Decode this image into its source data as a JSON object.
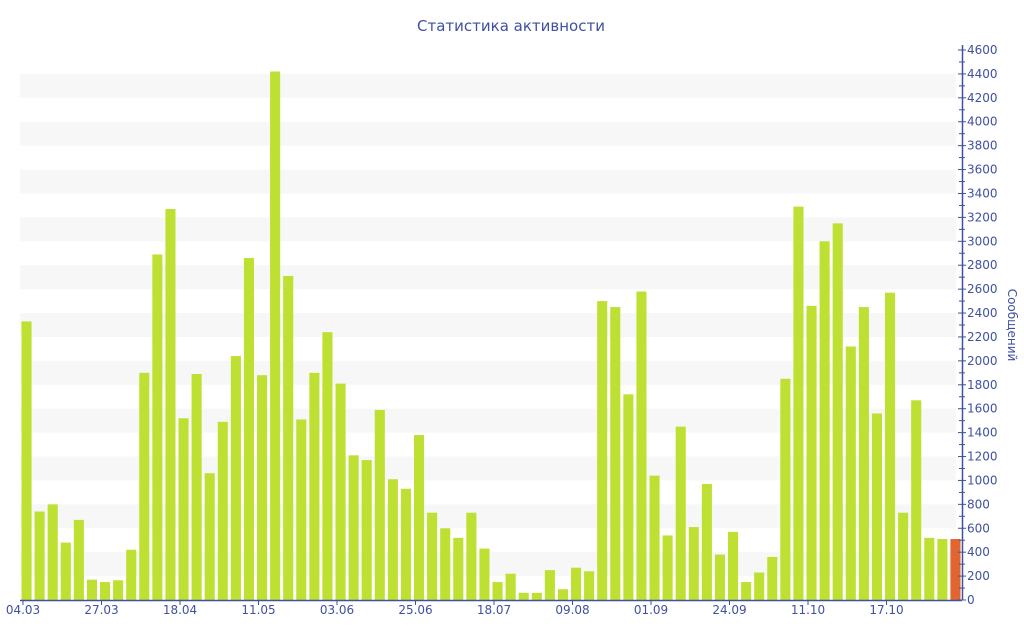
{
  "chart_data": {
    "type": "bar",
    "title": "Статистика активности",
    "xlabel": "",
    "ylabel": "Сообщений",
    "ylim": [
      0,
      4600
    ],
    "ytick_step": 200,
    "grid": "alternating horizontal bands",
    "legend": "none",
    "colors": {
      "bar": "#bde032",
      "highlight": "#e0652f",
      "axis": "#3f51a0",
      "text": "#3f51a0",
      "band": "#f7f7f7"
    },
    "x_tick_labels": [
      {
        "index": 0,
        "label": "04.03"
      },
      {
        "index": 6,
        "label": "27.03"
      },
      {
        "index": 12,
        "label": "18.04"
      },
      {
        "index": 18,
        "label": "11.05"
      },
      {
        "index": 24,
        "label": "03.06"
      },
      {
        "index": 30,
        "label": "25.06"
      },
      {
        "index": 36,
        "label": "18.07"
      },
      {
        "index": 42,
        "label": "09.08"
      },
      {
        "index": 48,
        "label": "01.09"
      },
      {
        "index": 54,
        "label": "24.09"
      },
      {
        "index": 60,
        "label": "11.10"
      },
      {
        "index": 66,
        "label": "17.10"
      }
    ],
    "values": [
      2330,
      740,
      800,
      480,
      670,
      170,
      150,
      165,
      420,
      1900,
      2890,
      3270,
      1520,
      1890,
      1060,
      1490,
      2040,
      2860,
      1880,
      4420,
      2710,
      1510,
      1900,
      2240,
      1810,
      1210,
      1170,
      1590,
      1010,
      930,
      1380,
      730,
      600,
      520,
      730,
      430,
      150,
      220,
      60,
      60,
      250,
      90,
      270,
      240,
      2500,
      2450,
      1720,
      2580,
      1040,
      540,
      1450,
      610,
      970,
      380,
      570,
      150,
      230,
      360,
      1850,
      3290,
      2460,
      3000,
      3150,
      2120,
      2450,
      1560,
      2570,
      730,
      1670,
      520,
      510,
      510
    ],
    "highlight_index": 71
  }
}
